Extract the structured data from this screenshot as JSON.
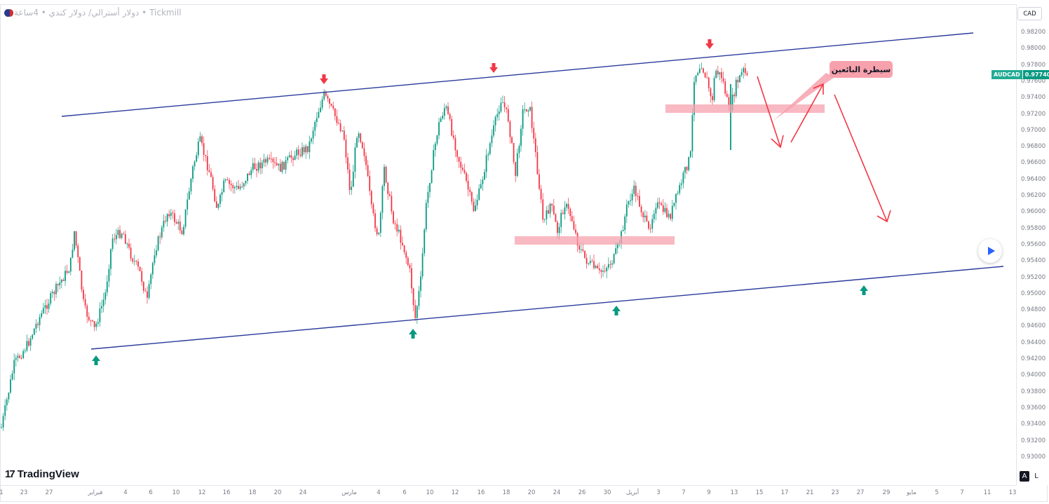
{
  "header": {
    "legend": "دولار أسترالي/ دولار كندي • 4ساعة • Tickmill",
    "currency_button": "CAD"
  },
  "price_axis": {
    "ticks": [
      "0.98200",
      "0.98000",
      "0.97800",
      "0.97600",
      "0.97400",
      "0.97200",
      "0.97000",
      "0.96800",
      "0.96600",
      "0.96400",
      "0.96200",
      "0.96000",
      "0.95800",
      "0.95600",
      "0.95400",
      "0.95200",
      "0.95000",
      "0.94800",
      "0.94600",
      "0.94400",
      "0.94200",
      "0.94000",
      "0.93800",
      "0.93600",
      "0.93400",
      "0.93200",
      "0.93000"
    ],
    "last_price_symbol": "AUDCAD",
    "last_price_value": "0.97740"
  },
  "time_axis": {
    "ticks": [
      "1",
      "23",
      "27",
      "فبراير",
      "4",
      "6",
      "10",
      "12",
      "16",
      "18",
      "20",
      "24",
      "مارس",
      "4",
      "6",
      "10",
      "12",
      "16",
      "18",
      "20",
      "24",
      "26",
      "30",
      "أبريل",
      "3",
      "7",
      "9",
      "13",
      "15",
      "17",
      "21",
      "23",
      "27",
      "29",
      "مايو",
      "5",
      "7",
      "11",
      "13"
    ]
  },
  "annotation": {
    "note_text": "سيطرة البائعين"
  },
  "branding": {
    "logo_text": "TradingView",
    "logo_mark": "17"
  },
  "controls": {
    "auto_button": "A",
    "log_button": "L"
  },
  "colors": {
    "up": "#089981",
    "down": "#f23645",
    "channel": "#2a3a9c",
    "zone": "#f7a1ad",
    "arrow": "#f23645"
  }
}
